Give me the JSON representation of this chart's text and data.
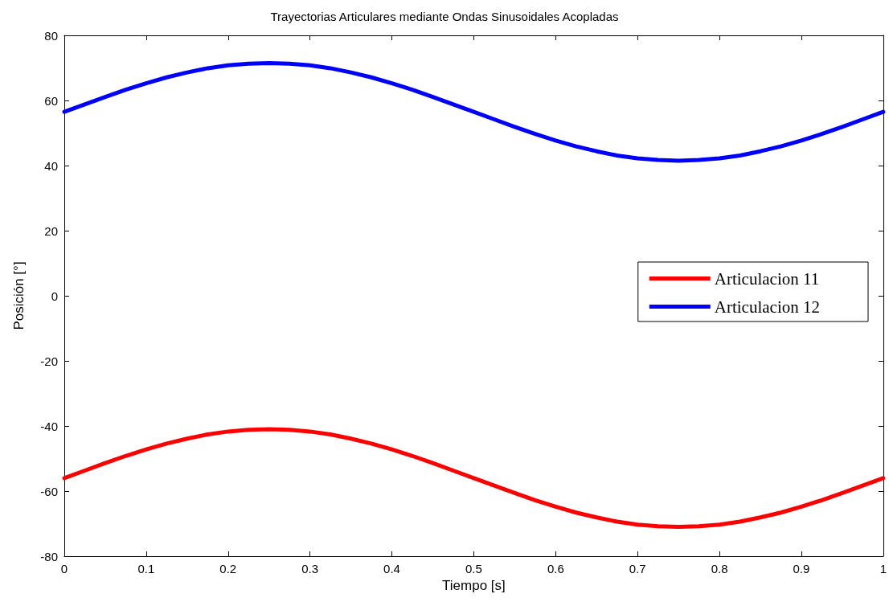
{
  "chart_data": {
    "type": "line",
    "title": "Trayectorias Articulares mediante Ondas Sinusoidales Acopladas",
    "xlabel": "Tiempo [s]",
    "ylabel": "Posición [°]",
    "x": [
      0,
      0.025,
      0.05,
      0.075,
      0.1,
      0.125,
      0.15,
      0.175,
      0.2,
      0.225,
      0.25,
      0.275,
      0.3,
      0.325,
      0.35,
      0.375,
      0.4,
      0.425,
      0.45,
      0.475,
      0.5,
      0.525,
      0.55,
      0.575,
      0.6,
      0.625,
      0.65,
      0.675,
      0.7,
      0.725,
      0.75,
      0.775,
      0.8,
      0.825,
      0.85,
      0.875,
      0.9,
      0.925,
      0.95,
      0.975,
      1
    ],
    "series": [
      {
        "name": "Articulacion 11",
        "color": "#ff0000",
        "values": [
          -56,
          -53.7,
          -51.4,
          -49.2,
          -47.2,
          -45.4,
          -43.9,
          -42.6,
          -41.7,
          -41.2,
          -41,
          -41.2,
          -41.7,
          -42.6,
          -43.9,
          -45.4,
          -47.2,
          -49.2,
          -51.4,
          -53.7,
          -56,
          -58.3,
          -60.6,
          -62.8,
          -64.8,
          -66.6,
          -68.1,
          -69.4,
          -70.3,
          -70.8,
          -71,
          -70.8,
          -70.3,
          -69.4,
          -68.1,
          -66.6,
          -64.8,
          -62.8,
          -60.6,
          -58.3,
          -56
        ]
      },
      {
        "name": "Articulacion 12",
        "color": "#0000ff",
        "values": [
          56.5,
          58.8,
          61.1,
          63.3,
          65.3,
          67.1,
          68.6,
          69.9,
          70.8,
          71.3,
          71.5,
          71.3,
          70.8,
          69.9,
          68.6,
          67.1,
          65.3,
          63.3,
          61.1,
          58.8,
          56.5,
          54.2,
          51.9,
          49.7,
          47.7,
          45.9,
          44.4,
          43.1,
          42.2,
          41.7,
          41.5,
          41.7,
          42.2,
          43.1,
          44.4,
          45.9,
          47.7,
          49.7,
          51.9,
          54.2,
          56.5
        ]
      }
    ],
    "xlim": [
      0,
      1
    ],
    "xticks": [
      0,
      0.1,
      0.2,
      0.3,
      0.4,
      0.5,
      0.6,
      0.7,
      0.8,
      0.9,
      1
    ],
    "ylim": [
      -80,
      80
    ],
    "yticks": [
      -80,
      -60,
      -40,
      -20,
      0,
      20,
      40,
      60,
      80
    ],
    "grid": false,
    "legend": "right",
    "marker": "none",
    "line_style": "solid"
  }
}
